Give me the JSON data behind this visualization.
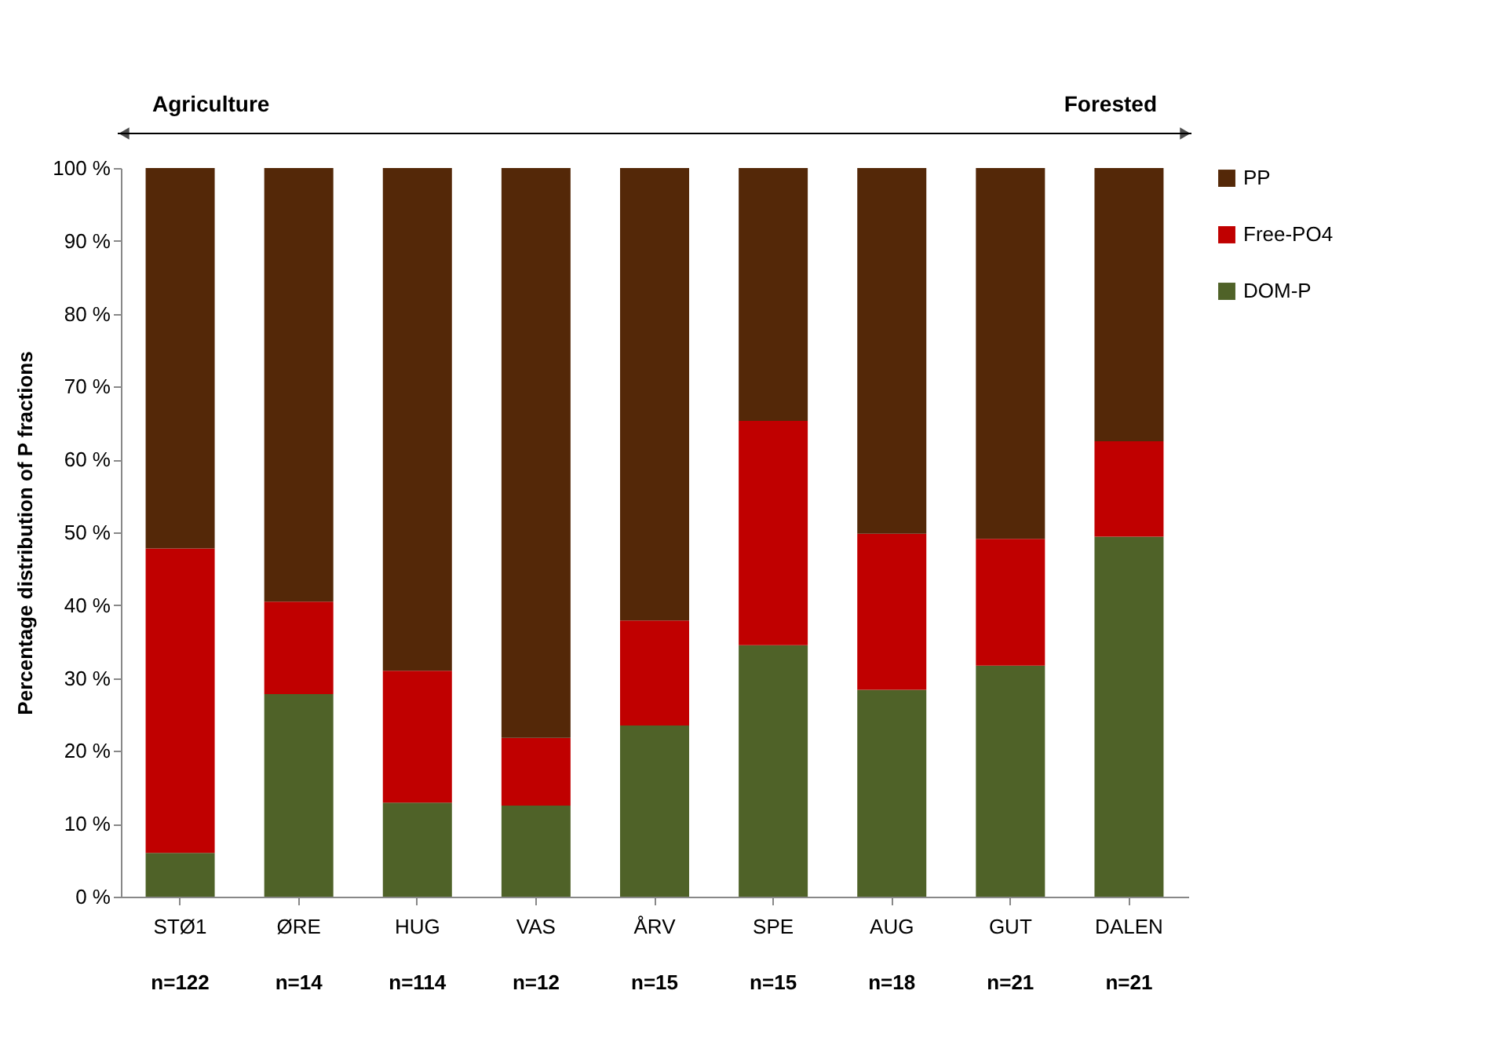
{
  "chart_data": {
    "type": "bar",
    "stacked": true,
    "ylabel": "Percentage distribution of P fractions",
    "categories": [
      "STØ1",
      "ØRE",
      "HUG",
      "VAS",
      "ÅRV",
      "SPE",
      "AUG",
      "GUT",
      "DALEN"
    ],
    "series": [
      {
        "name": "DOM-P",
        "color": "#4f6228",
        "values": [
          6.0,
          27.8,
          12.9,
          12.5,
          23.5,
          34.5,
          28.4,
          31.7,
          49.4
        ]
      },
      {
        "name": "Free-PO4",
        "color": "#c00000",
        "values": [
          41.8,
          12.7,
          18.1,
          9.3,
          14.4,
          30.8,
          21.4,
          17.4,
          13.1
        ]
      },
      {
        "name": "PP",
        "color": "#542808",
        "values": [
          52.2,
          59.5,
          69.0,
          78.2,
          62.1,
          34.7,
          50.2,
          50.9,
          37.5
        ]
      }
    ],
    "ylim": [
      0,
      100
    ],
    "yticks": [
      {
        "value": 0,
        "label": "0 %"
      },
      {
        "value": 10,
        "label": "10 %"
      },
      {
        "value": 20,
        "label": "20 %"
      },
      {
        "value": 30,
        "label": "30 %"
      },
      {
        "value": 40,
        "label": "40 %"
      },
      {
        "value": 50,
        "label": "50 %"
      },
      {
        "value": 60,
        "label": "60 %"
      },
      {
        "value": 70,
        "label": "70 %"
      },
      {
        "value": 80,
        "label": "80 %"
      },
      {
        "value": 90,
        "label": "90 %"
      },
      {
        "value": 100,
        "label": "100 %"
      }
    ],
    "grid": false,
    "legend": "right",
    "annotations": [
      "Agriculture",
      "Forested",
      "n=122",
      "n=14",
      "n=114",
      "n=12",
      "n=15",
      "n=15",
      "n=18",
      "n=21",
      "n=21"
    ]
  }
}
